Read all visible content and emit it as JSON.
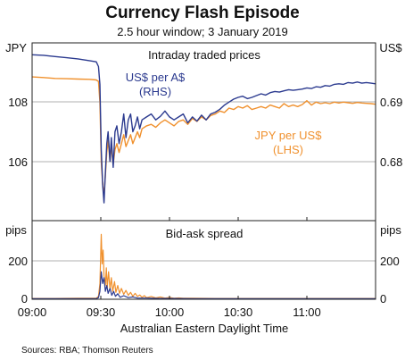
{
  "chart_data": {
    "type": "line",
    "title": "Currency Flash Episode",
    "subtitle": "2.5 hour window; 3 January 2019",
    "xlabel": "Australian Eastern Daylight Time",
    "source": "Sources: RBA; Thomson Reuters",
    "x_ticks": [
      {
        "label": "09:00",
        "min": 0
      },
      {
        "label": "09:30",
        "min": 30
      },
      {
        "label": "10:00",
        "min": 60
      },
      {
        "label": "10:30",
        "min": 90
      },
      {
        "label": "11:00",
        "min": 120
      }
    ],
    "x_range_min": [
      0,
      150
    ],
    "top_panel": {
      "heading": "Intraday traded prices",
      "left_unit": "JPY",
      "right_unit": "US$",
      "left_ticks": [
        "108",
        "106"
      ],
      "right_ticks": [
        "0.69",
        "0.68"
      ],
      "left_ylim": [
        104,
        110
      ],
      "right_ylim": [
        0.67,
        0.7
      ],
      "series": [
        {
          "name": "US$ per A$",
          "units": "(RHS)",
          "axis": "right",
          "color": "#2b3a8f",
          "points": [
            [
              0,
              0.698
            ],
            [
              5,
              0.6979
            ],
            [
              10,
              0.6977
            ],
            [
              15,
              0.6975
            ],
            [
              20,
              0.6973
            ],
            [
              25,
              0.697
            ],
            [
              28,
              0.6968
            ],
            [
              29,
              0.696
            ],
            [
              29.6,
              0.693
            ],
            [
              30.2,
              0.682
            ],
            [
              30.8,
              0.676
            ],
            [
              31.4,
              0.673
            ],
            [
              32,
              0.678
            ],
            [
              32.6,
              0.683
            ],
            [
              33.2,
              0.685
            ],
            [
              34,
              0.68
            ],
            [
              34.6,
              0.684
            ],
            [
              35.4,
              0.679
            ],
            [
              36.2,
              0.685
            ],
            [
              37,
              0.686
            ],
            [
              38,
              0.683
            ],
            [
              39,
              0.685
            ],
            [
              40,
              0.688
            ],
            [
              41,
              0.684
            ],
            [
              42,
              0.687
            ],
            [
              43,
              0.688
            ],
            [
              44,
              0.685
            ],
            [
              45,
              0.686
            ],
            [
              46,
              0.6875
            ],
            [
              47,
              0.6855
            ],
            [
              48,
              0.687
            ],
            [
              50,
              0.6875
            ],
            [
              52,
              0.688
            ],
            [
              54,
              0.687
            ],
            [
              56,
              0.6876
            ],
            [
              58,
              0.6885
            ],
            [
              60,
              0.6875
            ],
            [
              62,
              0.687
            ],
            [
              64,
              0.6875
            ],
            [
              66,
              0.688
            ],
            [
              68,
              0.6865
            ],
            [
              70,
              0.6875
            ],
            [
              72,
              0.6868
            ],
            [
              74,
              0.6878
            ],
            [
              76,
              0.687
            ],
            [
              78,
              0.688
            ],
            [
              80,
              0.6883
            ],
            [
              82,
              0.6888
            ],
            [
              84,
              0.6895
            ],
            [
              86,
              0.69
            ],
            [
              88,
              0.6905
            ],
            [
              90,
              0.6908
            ],
            [
              92,
              0.691
            ],
            [
              94,
              0.6906
            ],
            [
              96,
              0.6908
            ],
            [
              98,
              0.6911
            ],
            [
              100,
              0.6914
            ],
            [
              102,
              0.6912
            ],
            [
              104,
              0.6916
            ],
            [
              106,
              0.6918
            ],
            [
              108,
              0.6917
            ],
            [
              110,
              0.6919
            ],
            [
              112,
              0.6921
            ],
            [
              114,
              0.692
            ],
            [
              116,
              0.6921
            ],
            [
              118,
              0.6922
            ],
            [
              120,
              0.6924
            ],
            [
              122,
              0.6923
            ],
            [
              124,
              0.6926
            ],
            [
              126,
              0.6925
            ],
            [
              128,
              0.6928
            ],
            [
              130,
              0.6927
            ],
            [
              132,
              0.693
            ],
            [
              134,
              0.6931
            ],
            [
              136,
              0.693
            ],
            [
              138,
              0.6933
            ],
            [
              140,
              0.6932
            ],
            [
              142,
              0.6934
            ],
            [
              144,
              0.6932
            ],
            [
              146,
              0.6933
            ],
            [
              148,
              0.6932
            ],
            [
              150,
              0.6931
            ]
          ]
        },
        {
          "name": "JPY per US$",
          "units": "(LHS)",
          "axis": "left",
          "color": "#f0912e",
          "points": [
            [
              0,
              108.85
            ],
            [
              5,
              108.83
            ],
            [
              10,
              108.8
            ],
            [
              15,
              108.79
            ],
            [
              20,
              108.78
            ],
            [
              25,
              108.77
            ],
            [
              28,
              108.75
            ],
            [
              29,
              108.7
            ],
            [
              29.6,
              108.0
            ],
            [
              30.2,
              106.0
            ],
            [
              30.8,
              105.2
            ],
            [
              31.4,
              104.9
            ],
            [
              32,
              105.5
            ],
            [
              32.6,
              106.3
            ],
            [
              33.2,
              106.7
            ],
            [
              34,
              106.0
            ],
            [
              34.6,
              106.5
            ],
            [
              35.4,
              105.9
            ],
            [
              36.2,
              106.4
            ],
            [
              37,
              106.6
            ],
            [
              38,
              106.3
            ],
            [
              39,
              106.6
            ],
            [
              40,
              106.9
            ],
            [
              41,
              106.5
            ],
            [
              42,
              106.7
            ],
            [
              43,
              106.9
            ],
            [
              44,
              106.6
            ],
            [
              45,
              106.8
            ],
            [
              46,
              107.0
            ],
            [
              47,
              106.8
            ],
            [
              48,
              107.1
            ],
            [
              50,
              107.2
            ],
            [
              52,
              107.25
            ],
            [
              54,
              107.15
            ],
            [
              56,
              107.3
            ],
            [
              58,
              107.4
            ],
            [
              60,
              107.3
            ],
            [
              62,
              107.2
            ],
            [
              64,
              107.35
            ],
            [
              66,
              107.4
            ],
            [
              68,
              107.25
            ],
            [
              70,
              107.45
            ],
            [
              72,
              107.35
            ],
            [
              74,
              107.5
            ],
            [
              76,
              107.4
            ],
            [
              78,
              107.55
            ],
            [
              80,
              107.6
            ],
            [
              82,
              107.7
            ],
            [
              84,
              107.65
            ],
            [
              86,
              107.8
            ],
            [
              88,
              107.75
            ],
            [
              90,
              107.85
            ],
            [
              92,
              107.8
            ],
            [
              94,
              107.88
            ],
            [
              96,
              107.75
            ],
            [
              98,
              107.8
            ],
            [
              100,
              107.85
            ],
            [
              102,
              107.8
            ],
            [
              104,
              107.9
            ],
            [
              106,
              107.85
            ],
            [
              108,
              107.8
            ],
            [
              110,
              107.95
            ],
            [
              112,
              107.85
            ],
            [
              114,
              107.9
            ],
            [
              116,
              107.85
            ],
            [
              118,
              107.92
            ],
            [
              120,
              108.05
            ],
            [
              122,
              107.9
            ],
            [
              124,
              108.0
            ],
            [
              126,
              107.95
            ],
            [
              128,
              107.98
            ],
            [
              130,
              107.95
            ],
            [
              132,
              108.0
            ],
            [
              134,
              107.97
            ],
            [
              136,
              108.0
            ],
            [
              138,
              107.98
            ],
            [
              140,
              107.96
            ],
            [
              142,
              107.99
            ],
            [
              144,
              107.97
            ],
            [
              146,
              107.96
            ],
            [
              148,
              107.95
            ],
            [
              150,
              107.93
            ]
          ]
        }
      ]
    },
    "bottom_panel": {
      "heading": "Bid-ask spread",
      "left_unit": "pips",
      "right_unit": "pips",
      "ticks": [
        "200",
        "0"
      ],
      "ylim": [
        0,
        400
      ],
      "series": [
        {
          "name": "JPY per US$",
          "color": "#f0912e",
          "points": [
            [
              0,
              4
            ],
            [
              10,
              4
            ],
            [
              20,
              5
            ],
            [
              28,
              5
            ],
            [
              29,
              15
            ],
            [
              29.6,
              80
            ],
            [
              30.2,
              330
            ],
            [
              30.6,
              180
            ],
            [
              31,
              250
            ],
            [
              31.4,
              120
            ],
            [
              32,
              70
            ],
            [
              32.4,
              160
            ],
            [
              32.8,
              60
            ],
            [
              33.4,
              140
            ],
            [
              34,
              50
            ],
            [
              34.6,
              110
            ],
            [
              35.2,
              40
            ],
            [
              36,
              90
            ],
            [
              36.6,
              35
            ],
            [
              37.4,
              70
            ],
            [
              38.2,
              30
            ],
            [
              39,
              55
            ],
            [
              40,
              25
            ],
            [
              41,
              45
            ],
            [
              42,
              20
            ],
            [
              43,
              35
            ],
            [
              44,
              15
            ],
            [
              45,
              30
            ],
            [
              46,
              14
            ],
            [
              47,
              22
            ],
            [
              48,
              10
            ],
            [
              49,
              18
            ],
            [
              50,
              8
            ],
            [
              52,
              14
            ],
            [
              54,
              7
            ],
            [
              56,
              12
            ],
            [
              58,
              6
            ],
            [
              60,
              9
            ],
            [
              62,
              5
            ],
            [
              64,
              7
            ],
            [
              66,
              5
            ],
            [
              70,
              5
            ],
            [
              80,
              4
            ],
            [
              100,
              4
            ],
            [
              120,
              4
            ],
            [
              150,
              4
            ]
          ]
        },
        {
          "name": "US$ per A$",
          "color": "#2b3a8f",
          "points": [
            [
              0,
              3
            ],
            [
              10,
              3
            ],
            [
              20,
              3
            ],
            [
              28,
              3
            ],
            [
              29,
              8
            ],
            [
              29.6,
              40
            ],
            [
              30.2,
              140
            ],
            [
              30.8,
              80
            ],
            [
              31.4,
              110
            ],
            [
              32,
              40
            ],
            [
              32.6,
              70
            ],
            [
              33.2,
              30
            ],
            [
              34,
              55
            ],
            [
              34.8,
              20
            ],
            [
              35.6,
              40
            ],
            [
              36.4,
              15
            ],
            [
              37.4,
              28
            ],
            [
              38.4,
              10
            ],
            [
              40,
              18
            ],
            [
              42,
              8
            ],
            [
              44,
              12
            ],
            [
              46,
              6
            ],
            [
              50,
              6
            ],
            [
              55,
              4
            ],
            [
              60,
              4
            ],
            [
              70,
              3
            ],
            [
              100,
              3
            ],
            [
              150,
              3
            ]
          ]
        }
      ]
    }
  }
}
